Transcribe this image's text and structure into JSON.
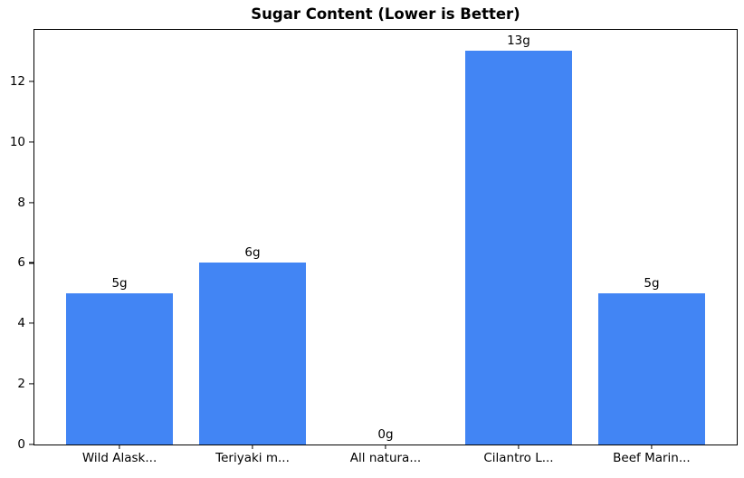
{
  "title": "Sugar Content (Lower is Better)",
  "chart_data": {
    "type": "bar",
    "title": "Sugar Content (Lower is Better)",
    "categories": [
      "Wild Alask...",
      "Teriyaki m...",
      "All natura...",
      "Cilantro L...",
      "Beef Marin..."
    ],
    "values": [
      5,
      6,
      0,
      13,
      5
    ],
    "value_labels": [
      "5g",
      "6g",
      "0g",
      "13g",
      "5g"
    ],
    "xlabel": "",
    "ylabel": "",
    "ylim": [
      0,
      13.7
    ],
    "xlim": [
      -0.64,
      4.64
    ],
    "yticks": [
      0,
      2,
      4,
      6,
      8,
      10,
      12
    ],
    "bar_width": 0.8,
    "bar_color": "#4285F4",
    "axis_color": "#000000",
    "background_color": "#ffffff",
    "grid": false,
    "legend": null
  }
}
